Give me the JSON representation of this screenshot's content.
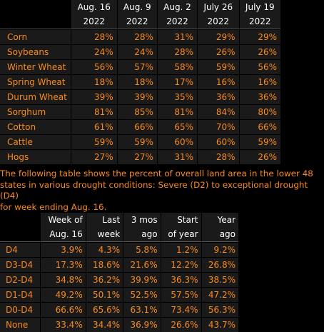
{
  "crop_table": {
    "header_row1": [
      "Aug. 16",
      "Aug. 9",
      "Aug. 2",
      "July 26",
      "July 19"
    ],
    "header_row2": [
      "2022",
      "2022",
      "2022",
      "2022",
      "2022"
    ],
    "rows": [
      {
        "label": "Corn",
        "values": [
          "28%",
          "28%",
          "31%",
          "29%",
          "29%"
        ]
      },
      {
        "label": "Soybeans",
        "values": [
          "24%",
          "24%",
          "28%",
          "26%",
          "26%"
        ]
      },
      {
        "label": "Winter Wheat",
        "values": [
          "56%",
          "57%",
          "58%",
          "59%",
          "56%"
        ]
      },
      {
        "label": "Spring Wheat",
        "values": [
          "18%",
          "18%",
          "17%",
          "16%",
          "16%"
        ]
      },
      {
        "label": "Durum Wheat",
        "values": [
          "39%",
          "39%",
          "35%",
          "36%",
          "36%"
        ]
      },
      {
        "label": "Sorghum",
        "values": [
          "81%",
          "85%",
          "81%",
          "84%",
          "80%"
        ]
      },
      {
        "label": "Cotton",
        "values": [
          "61%",
          "66%",
          "65%",
          "70%",
          "66%"
        ]
      },
      {
        "label": "Cattle",
        "values": [
          "59%",
          "59%",
          "60%",
          "60%",
          "59%"
        ]
      },
      {
        "label": "Hogs",
        "values": [
          "27%",
          "27%",
          "31%",
          "28%",
          "26%"
        ]
      }
    ]
  },
  "note": {
    "line1": "The following table shows the percent of overall land area in the lower 48",
    "line2": "states in various drought conditions: Severe (D2) to exceptional drought (D4)",
    "line3": "for week ending Aug. 16."
  },
  "drought_table": {
    "header_row1": [
      "Week of",
      "Last",
      "3 mos",
      "Start",
      "Year"
    ],
    "header_row2": [
      "Aug. 16",
      "week",
      "ago",
      "of year",
      "ago"
    ],
    "rows": [
      {
        "label": "D4",
        "values": [
          "3.9%",
          "4.3%",
          "5.8%",
          "1.2%",
          "9.2%"
        ]
      },
      {
        "label": "D3-D4",
        "values": [
          "17.3%",
          "18.6%",
          "21.6%",
          "12.2%",
          "26.8%"
        ]
      },
      {
        "label": "D2-D4",
        "values": [
          "34.8%",
          "36.2%",
          "39.9%",
          "36.3%",
          "38.5%"
        ]
      },
      {
        "label": "D1-D4",
        "values": [
          "49.2%",
          "50.1%",
          "52.5%",
          "57.5%",
          "47.2%"
        ]
      },
      {
        "label": "D0-D4",
        "values": [
          "66.6%",
          "65.6%",
          "63.1%",
          "73.4%",
          "56.3%"
        ]
      },
      {
        "label": "None",
        "values": [
          "33.4%",
          "34.4%",
          "36.9%",
          "26.6%",
          "43.7%"
        ]
      }
    ]
  },
  "colors": {
    "background": "#000000",
    "row_background": "#1a1a1a",
    "value_text": "#fb8b1e",
    "header_text": "#ffffff"
  }
}
